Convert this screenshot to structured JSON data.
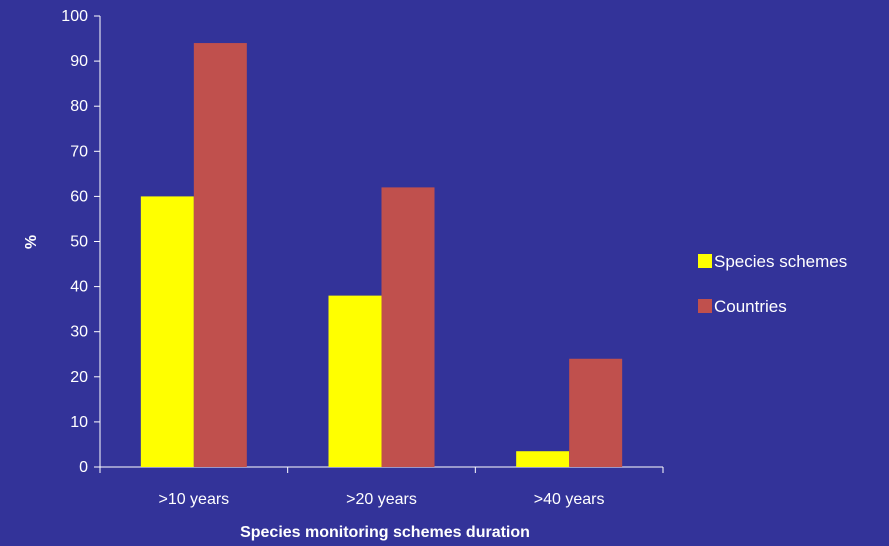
{
  "chart_data": {
    "type": "bar",
    "title": "",
    "xlabel": "Species monitoring schemes duration",
    "ylabel": "%",
    "categories": [
      ">10 years",
      ">20 years",
      ">40 years"
    ],
    "series": [
      {
        "name": "Species schemes",
        "values": [
          60,
          38,
          3.5
        ],
        "color": "#ffff00"
      },
      {
        "name": "Countries",
        "values": [
          94,
          62,
          24
        ],
        "color": "#c0504d"
      }
    ],
    "ylim": [
      0,
      100
    ],
    "yticks": [
      0,
      10,
      20,
      30,
      40,
      50,
      60,
      70,
      80,
      90,
      100
    ],
    "grid": false,
    "legend": "right"
  }
}
